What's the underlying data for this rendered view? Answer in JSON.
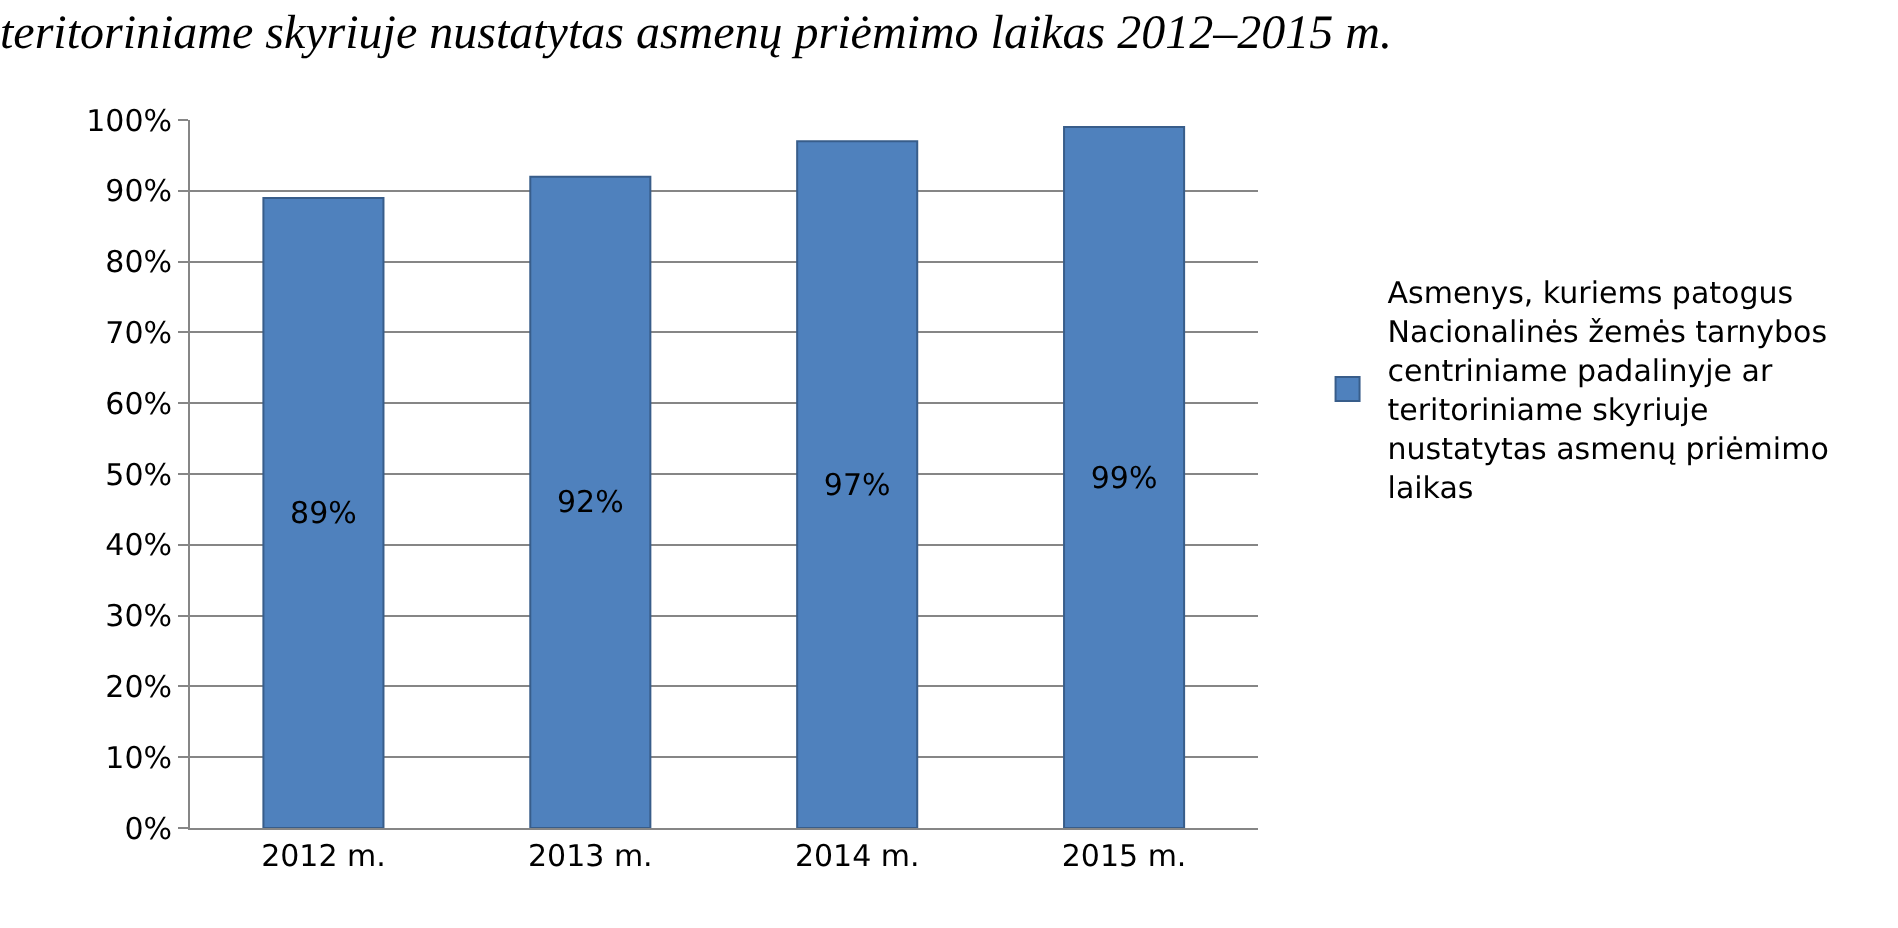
{
  "chart_data": {
    "type": "bar",
    "title": "teritoriniame skyriuje nustatytas asmenų priėmimo laikas 2012–2015 m.",
    "categories": [
      "2012 m.",
      "2013 m.",
      "2014 m.",
      "2015 m."
    ],
    "series": [
      {
        "name": "Asmenys, kuriems patogus Nacionalinės žemės tarnybos centriniame padalinyje ar teritoriniame skyriuje nustatytas asmenų priėmimo laikas",
        "color": "#4f81bd",
        "values": [
          89,
          92,
          97,
          99
        ],
        "value_labels": [
          "89%",
          "92%",
          "97%",
          "99%"
        ]
      }
    ],
    "ylim": [
      0,
      100
    ],
    "yticks": [
      {
        "value": 0,
        "label": "0%"
      },
      {
        "value": 10,
        "label": "10%"
      },
      {
        "value": 20,
        "label": "20%"
      },
      {
        "value": 30,
        "label": "30%"
      },
      {
        "value": 40,
        "label": "40%"
      },
      {
        "value": 50,
        "label": "50%"
      },
      {
        "value": 60,
        "label": "60%"
      },
      {
        "value": 70,
        "label": "70%"
      },
      {
        "value": 80,
        "label": "80%"
      },
      {
        "value": 90,
        "label": "90%"
      },
      {
        "value": 100,
        "label": "100%"
      }
    ],
    "grid": "y",
    "legend": "right"
  }
}
